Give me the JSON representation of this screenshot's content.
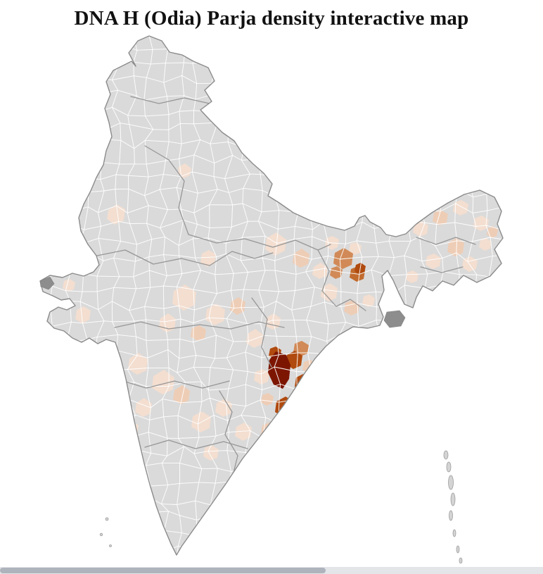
{
  "page": {
    "title": "DNA H (Odia) Parja density interactive map"
  },
  "map": {
    "region": "India (district level)",
    "type": "choropleth density map",
    "palette": {
      "no_data_district": "#dadada",
      "low_density": "#f3ded0",
      "low_medium_density": "#eecdb6",
      "medium_density": "#d18a57",
      "medium_high_density": "#c26b2e",
      "high_density": "#b04a0e",
      "highest_density": "#7d1600",
      "district_border": "#ffffff",
      "state_border": "#979797",
      "country_outline": "#8b8b8b",
      "excluded_area": "#8d8d8d"
    },
    "density_summary": [
      {
        "area": "southern Odisha (Koraput region)",
        "level": "highest"
      },
      {
        "area": "southern Odisha and adjoining north coastal Andhra Pradesh",
        "level": "high"
      },
      {
        "area": "Jharkhand / West Bengal border districts",
        "level": "medium"
      },
      {
        "area": "scattered districts across central and peninsular India",
        "level": "low"
      },
      {
        "area": "scattered districts across Northeast India",
        "level": "low"
      },
      {
        "area": "most other districts",
        "level": "no data"
      }
    ]
  },
  "scrollbar": {
    "orientation": "horizontal"
  }
}
